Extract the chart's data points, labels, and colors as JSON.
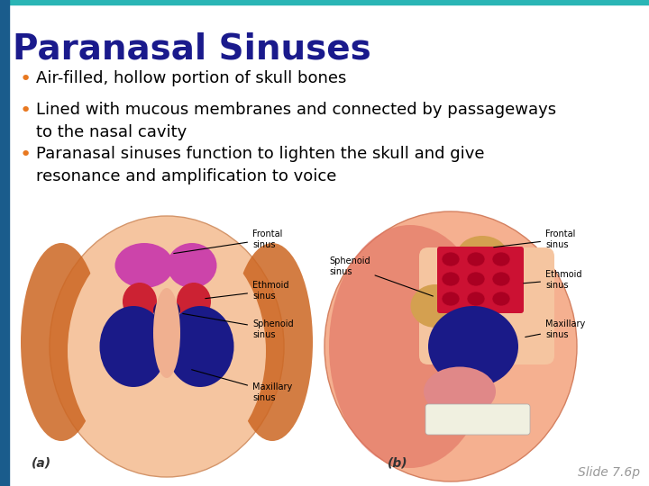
{
  "title": "Paranasal Sinuses",
  "title_color": "#1a1a8c",
  "title_fontsize": 28,
  "title_fontstyle": "bold",
  "background_color": "#ffffff",
  "top_bar_color": "#2ab5b5",
  "left_bar_color": "#1a5c8c",
  "bullet_color": "#e87820",
  "bullet_text_color": "#000000",
  "bullet_fontsize": 13,
  "bullets": [
    "Air-filled, hollow portion of skull bones",
    "Lined with mucous membranes and connected by passageways\nto the nasal cavity",
    "Paranasal sinuses function to lighten the skull and give\nresonance and amplification to voice"
  ],
  "slide_label": "Slide 7.6p",
  "slide_label_color": "#999999",
  "slide_label_fontsize": 10,
  "label_a": "(a)",
  "label_b": "(b)",
  "label_fontsize": 10,
  "label_color": "#333333"
}
